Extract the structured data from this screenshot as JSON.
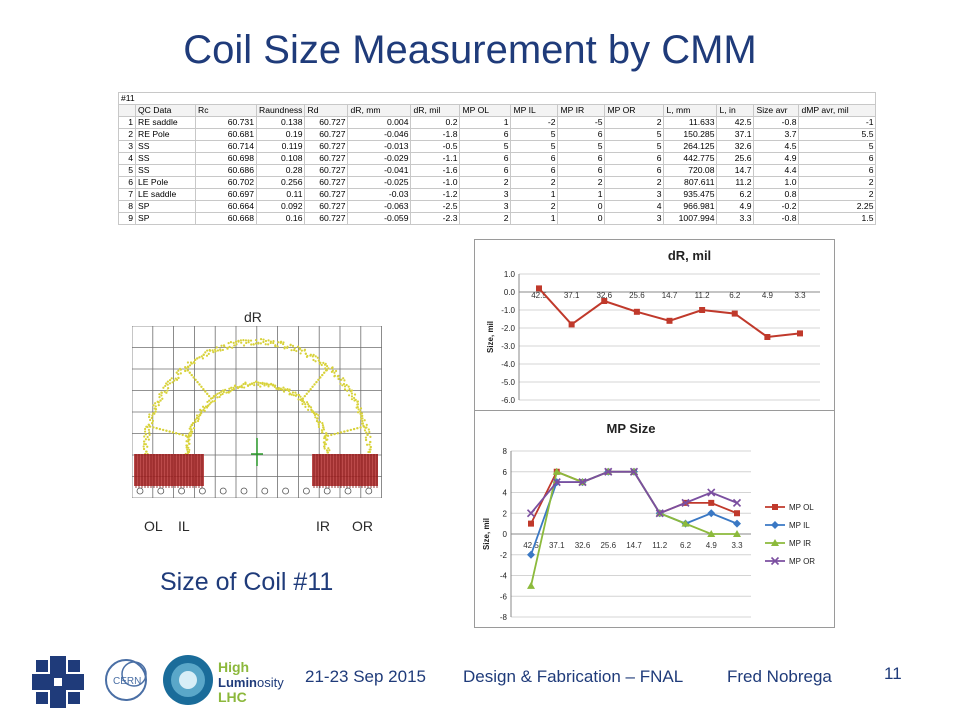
{
  "slide": {
    "title": "Coil Size Measurement by CMM",
    "size_label": "Size of Coil #11",
    "page_number": "11",
    "footer": {
      "date": "21-23 Sep 2015",
      "event": "Design & Fabrication – FNAL",
      "author": "Fred Nobrega"
    },
    "logos": {
      "cern": "CERN",
      "hl_line1": "High",
      "hl_line2a": "Lumin",
      "hl_line2b": "osity",
      "hl_line3": "LHC"
    }
  },
  "table": {
    "id_label": "#11",
    "headers": [
      "",
      "QC Data",
      "Rc",
      "Raundness",
      "Rd",
      "dR, mm",
      "dR, mil",
      "MP OL",
      "MP IL",
      "MP IR",
      "MP OR",
      "L, mm",
      "L, in",
      "Size avr",
      "dMP avr, mil"
    ],
    "rows": [
      [
        "1",
        "RE saddle",
        "60.731",
        "0.138",
        "60.727",
        "0.004",
        "0.2",
        "1",
        "-2",
        "-5",
        "2",
        "11.633",
        "42.5",
        "-0.8",
        "-1"
      ],
      [
        "2",
        "RE Pole",
        "60.681",
        "0.19",
        "60.727",
        "-0.046",
        "-1.8",
        "6",
        "5",
        "6",
        "5",
        "150.285",
        "37.1",
        "3.7",
        "5.5"
      ],
      [
        "3",
        "SS",
        "60.714",
        "0.119",
        "60.727",
        "-0.013",
        "-0.5",
        "5",
        "5",
        "5",
        "5",
        "264.125",
        "32.6",
        "4.5",
        "5"
      ],
      [
        "4",
        "SS",
        "60.698",
        "0.108",
        "60.727",
        "-0.029",
        "-1.1",
        "6",
        "6",
        "6",
        "6",
        "442.775",
        "25.6",
        "4.9",
        "6"
      ],
      [
        "5",
        "SS",
        "60.686",
        "0.28",
        "60.727",
        "-0.041",
        "-1.6",
        "6",
        "6",
        "6",
        "6",
        "720.08",
        "14.7",
        "4.4",
        "6"
      ],
      [
        "6",
        "LE Pole",
        "60.702",
        "0.256",
        "60.727",
        "-0.025",
        "-1.0",
        "2",
        "2",
        "2",
        "2",
        "807.611",
        "11.2",
        "1.0",
        "2"
      ],
      [
        "7",
        "LE saddle",
        "60.697",
        "0.11",
        "60.727",
        "-0.03",
        "-1.2",
        "3",
        "1",
        "1",
        "3",
        "935.475",
        "6.2",
        "0.8",
        "2"
      ],
      [
        "8",
        "SP",
        "60.664",
        "0.092",
        "60.727",
        "-0.063",
        "-2.5",
        "3",
        "2",
        "0",
        "4",
        "966.981",
        "4.9",
        "-0.2",
        "2.25"
      ],
      [
        "9",
        "SP",
        "60.668",
        "0.16",
        "60.727",
        "-0.059",
        "-2.3",
        "2",
        "1",
        "0",
        "3",
        "1007.994",
        "3.3",
        "-0.8",
        "1.5"
      ]
    ]
  },
  "cmm_plot": {
    "title": "dR",
    "labels": [
      "OL",
      "IL",
      "IR",
      "OR"
    ]
  },
  "chart_data": [
    {
      "type": "line",
      "title": "dR, mil",
      "ylabel": "Size, mil",
      "xlabel": "",
      "ylim": [
        -6.0,
        1.0
      ],
      "yticks": [
        "1.0",
        "0.0",
        "-1.0",
        "-2.0",
        "-3.0",
        "-4.0",
        "-5.0",
        "-6.0"
      ],
      "grid": true,
      "categories": [
        "42.5",
        "37.1",
        "32.6",
        "25.6",
        "14.7",
        "11.2",
        "6.2",
        "4.9",
        "3.3"
      ],
      "series": [
        {
          "name": "",
          "color": "#c0392b",
          "values": [
            0.2,
            -1.8,
            -0.5,
            -1.1,
            -1.6,
            -1.0,
            -1.2,
            -2.5,
            -2.3
          ]
        }
      ]
    },
    {
      "type": "line",
      "title": "MP Size",
      "ylabel": "Size, mil",
      "xlabel": "",
      "ylim": [
        -8,
        8
      ],
      "yticks": [
        "8",
        "6",
        "4",
        "2",
        "0",
        "-2",
        "-4",
        "-6",
        "-8"
      ],
      "grid": true,
      "legend": "right",
      "categories": [
        "42.5",
        "37.1",
        "32.6",
        "25.6",
        "14.7",
        "11.2",
        "6.2",
        "4.9",
        "3.3"
      ],
      "series": [
        {
          "name": "MP OL",
          "color": "#c0392b",
          "marker": "square",
          "values": [
            1,
            6,
            5,
            6,
            6,
            2,
            3,
            3,
            2
          ]
        },
        {
          "name": "MP IL",
          "color": "#3a78c4",
          "marker": "diamond",
          "values": [
            -2,
            5,
            5,
            6,
            6,
            2,
            1,
            2,
            1
          ]
        },
        {
          "name": "MP IR",
          "color": "#8cba3c",
          "marker": "triangle",
          "values": [
            -5,
            6,
            5,
            6,
            6,
            2,
            1,
            0,
            0
          ]
        },
        {
          "name": "MP OR",
          "color": "#7b4fa0",
          "marker": "x",
          "values": [
            2,
            5,
            5,
            6,
            6,
            2,
            3,
            4,
            3
          ]
        }
      ]
    }
  ]
}
